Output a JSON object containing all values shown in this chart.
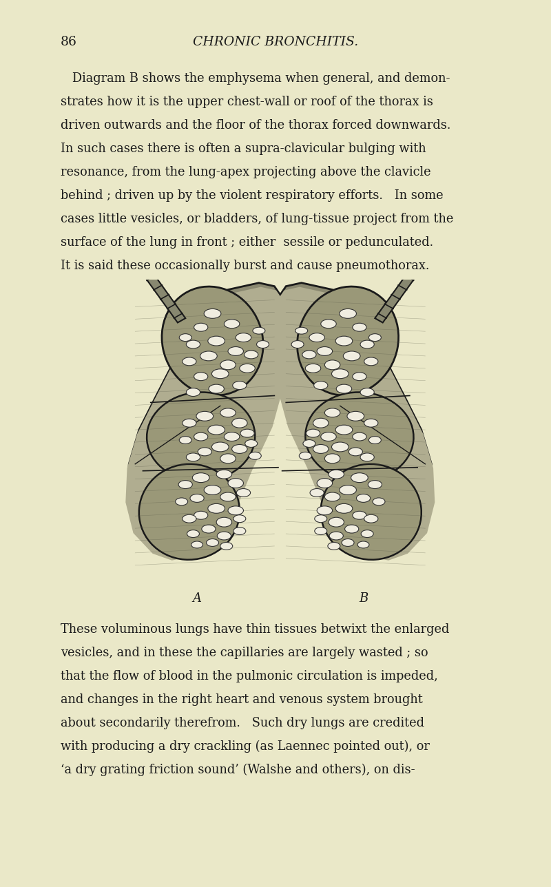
{
  "bg_color": "#eae8c8",
  "page_number": "86",
  "header_title": "CHRONIC BRONCHITIS.",
  "header_fontsize": 13.5,
  "page_num_fontsize": 13.5,
  "body_fontsize": 12.8,
  "label_fontsize": 13,
  "paragraph1_lines": [
    "   Diagram B shows the emphysema when general, and demon-",
    "strates how it is the upper chest-wall or roof of the thorax is",
    "driven outwards and the floor of the thorax forced downwards.",
    "In such cases there is often a supra-clavicular bulging with",
    "resonance, from the lung-apex projecting above the clavicle",
    "behind ; driven up by the violent respiratory efforts.   In some",
    "cases little vesicles, or bladders, of lung-tissue project from the",
    "surface of the lung in front ; either  sessile or pedunculated.",
    "It is said these occasionally burst and cause pneumothorax."
  ],
  "label_a": "A",
  "label_b": "B",
  "paragraph2_lines": [
    "These voluminous lungs have thin tissues betwixt the enlarged",
    "vesicles, and in these the capillaries are largely wasted ; so",
    "that the flow of blood in the pulmonic circulation is impeded,",
    "and changes in the right heart and venous system brought",
    "about secondarily therefrom.   Such dry lungs are credited",
    "with producing a dry crackling (as Laennec pointed out), or",
    "‘a dry grating friction sound’ (Walshe and others), on dis-"
  ],
  "text_color": "#1c1c1c",
  "dark_color": "#1a1a1a",
  "lung_bg": "#ccc8a0",
  "vesicle_fill": "#f0ede0",
  "lobe_fill": "#b8b498"
}
